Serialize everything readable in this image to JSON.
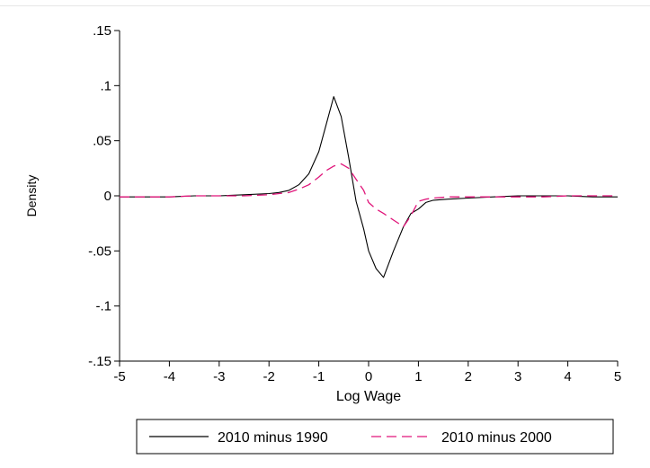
{
  "chart_data": {
    "type": "line",
    "title": "",
    "xlabel": "Log Wage",
    "ylabel": "Density",
    "xlim": [
      -5,
      5
    ],
    "ylim": [
      -0.15,
      0.15
    ],
    "x_ticks": [
      -5,
      -4,
      -3,
      -2,
      -1,
      0,
      1,
      2,
      3,
      4,
      5
    ],
    "x_tick_labels": [
      "-5",
      "-4",
      "-3",
      "-2",
      "-1",
      "0",
      "1",
      "2",
      "3",
      "4",
      "5"
    ],
    "y_ticks": [
      -0.15,
      -0.1,
      -0.05,
      0,
      0.05,
      0.1,
      0.15
    ],
    "y_tick_labels": [
      "-.15",
      "-.1",
      "-.05",
      "0",
      ".05",
      ".1",
      ".15"
    ],
    "grid": false,
    "legend": {
      "position": "bottom",
      "columns": 2
    },
    "series": [
      {
        "name": "2010 minus 1990",
        "color": "#000000",
        "style": "solid",
        "x": [
          -5,
          -4.5,
          -4,
          -3.5,
          -3,
          -2.5,
          -2,
          -1.8,
          -1.6,
          -1.4,
          -1.2,
          -1.0,
          -0.85,
          -0.7,
          -0.55,
          -0.4,
          -0.25,
          -0.1,
          0.0,
          0.15,
          0.3,
          0.5,
          0.7,
          0.85,
          1.0,
          1.15,
          1.3,
          1.6,
          2.0,
          2.5,
          3.0,
          3.5,
          4.0,
          4.5,
          5.0
        ],
        "y": [
          -0.001,
          -0.001,
          -0.001,
          0.0,
          0.0,
          0.001,
          0.002,
          0.003,
          0.005,
          0.01,
          0.02,
          0.04,
          0.065,
          0.09,
          0.072,
          0.035,
          -0.005,
          -0.03,
          -0.05,
          -0.066,
          -0.074,
          -0.05,
          -0.028,
          -0.016,
          -0.012,
          -0.006,
          -0.004,
          -0.003,
          -0.002,
          -0.001,
          0.0,
          0.0,
          0.0,
          -0.001,
          -0.001
        ]
      },
      {
        "name": "2010 minus 2000",
        "color": "#e0157a",
        "style": "dashed",
        "x": [
          -5,
          -4.5,
          -4,
          -3.5,
          -3,
          -2.5,
          -2,
          -1.8,
          -1.6,
          -1.4,
          -1.2,
          -1.0,
          -0.85,
          -0.7,
          -0.55,
          -0.4,
          -0.25,
          -0.1,
          0.0,
          0.15,
          0.3,
          0.5,
          0.7,
          0.85,
          1.0,
          1.15,
          1.3,
          1.6,
          2.0,
          2.5,
          3.0,
          3.5,
          4.0,
          4.5,
          5.0
        ],
        "y": [
          -0.001,
          -0.001,
          -0.001,
          0.0,
          0.0,
          0.0,
          0.001,
          0.002,
          0.003,
          0.006,
          0.01,
          0.017,
          0.023,
          0.027,
          0.029,
          0.025,
          0.015,
          0.005,
          -0.006,
          -0.012,
          -0.016,
          -0.022,
          -0.028,
          -0.018,
          -0.005,
          -0.003,
          -0.002,
          -0.001,
          -0.001,
          -0.001,
          -0.001,
          -0.001,
          0.0,
          0.0,
          0.0
        ]
      }
    ]
  }
}
